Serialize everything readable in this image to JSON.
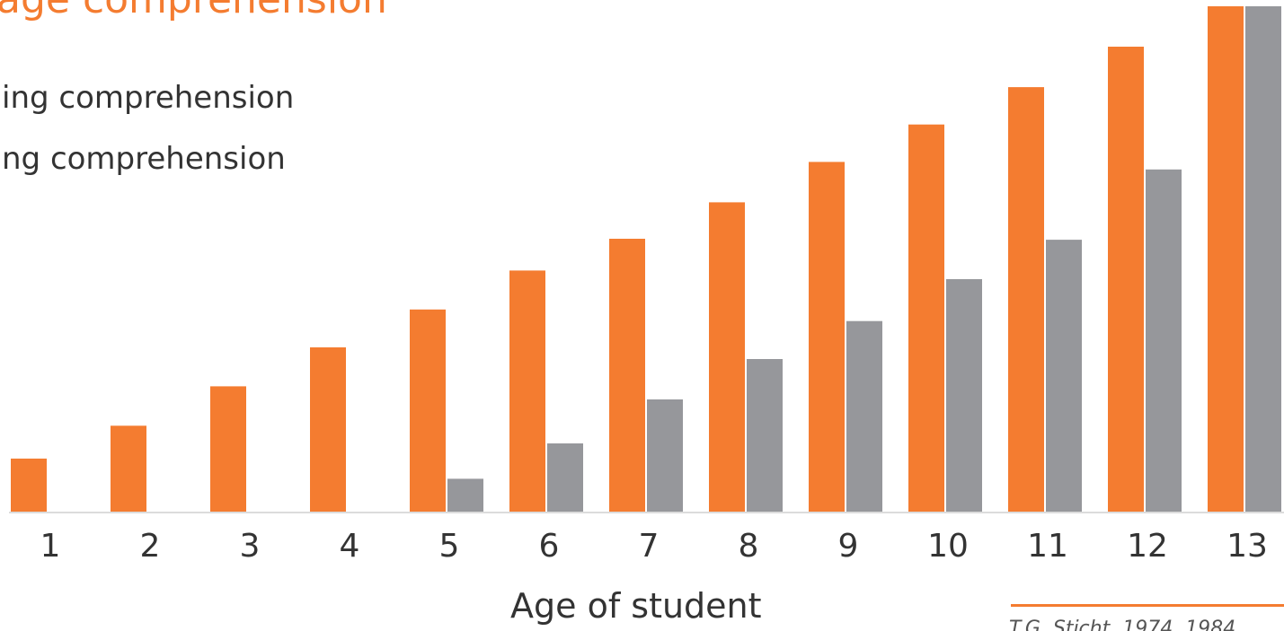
{
  "chart_data": {
    "type": "bar",
    "title": "age comprehension",
    "xlabel": "Age of student",
    "ylabel": "",
    "source": "T.G. Sticht, 1974, 1984",
    "categories": [
      "1",
      "2",
      "3",
      "4",
      "5",
      "6",
      "7",
      "8",
      "9",
      "10",
      "11",
      "12",
      "13"
    ],
    "series": [
      {
        "name": "ing comprehension",
        "color": "#F47C30",
        "values": [
          10.5,
          17.0,
          24.8,
          32.5,
          40.0,
          47.7,
          54.0,
          61.2,
          69.2,
          76.6,
          84.0,
          92.0,
          100.0
        ]
      },
      {
        "name": "ng comprehension",
        "color": "#96979B",
        "values": [
          0,
          0,
          0,
          0,
          6.5,
          13.5,
          22.2,
          30.2,
          37.7,
          46.0,
          53.8,
          67.7,
          100.0
        ]
      }
    ],
    "ylim": [
      0,
      100
    ],
    "grid": false,
    "legend": "top-left"
  }
}
